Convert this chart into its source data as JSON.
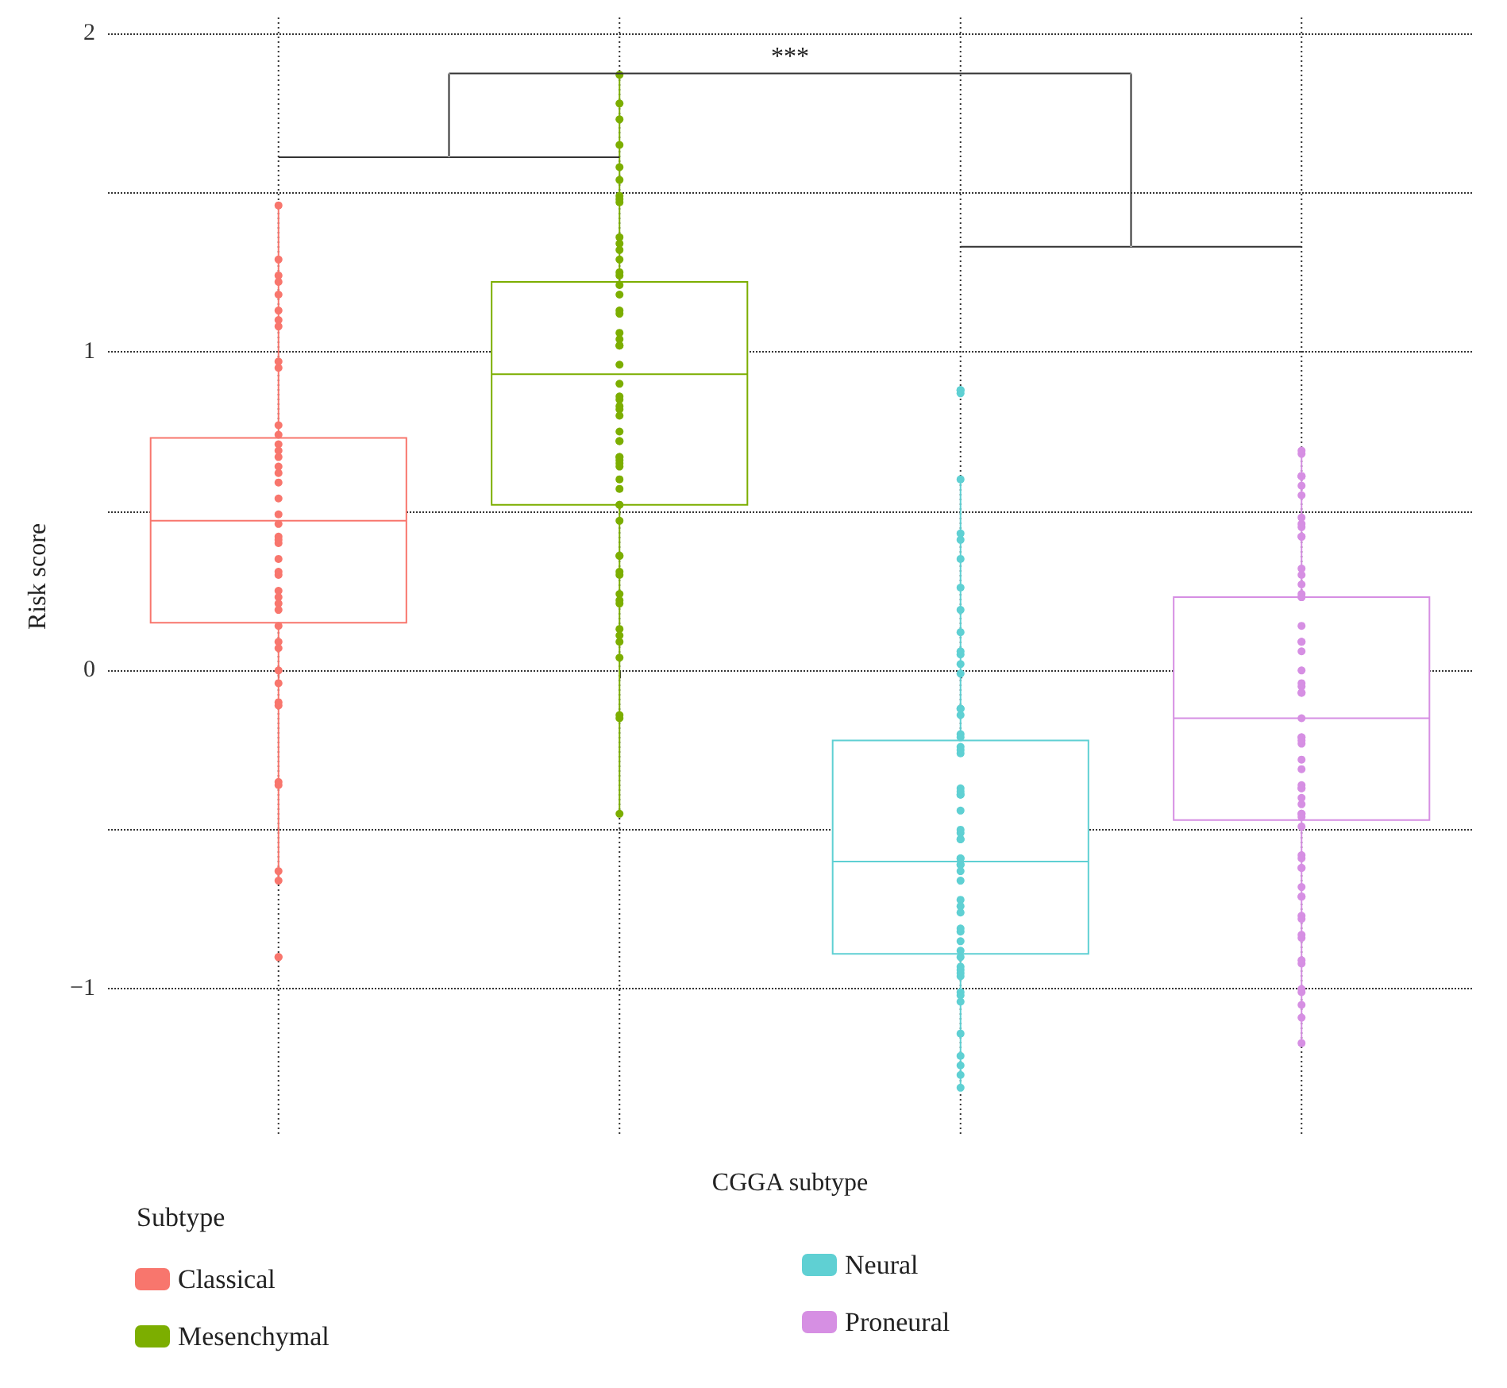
{
  "chart_data": {
    "type": "box",
    "categories": [
      null,
      null,
      null,
      null
    ],
    "xlabel": "CGGA subtype",
    "ylabel": "Risk score",
    "ylim": [
      -1.46,
      2.05
    ],
    "yticks": [
      {
        "value": -1,
        "label": "−1"
      },
      {
        "value": -0.5,
        "label": null
      },
      0,
      {
        "value": 0.5,
        "label": null
      },
      1,
      {
        "value": 1.5,
        "label": null
      },
      2
    ],
    "grid": true,
    "tick_labels": "y",
    "legend": "bottom left",
    "legend_title": "Subtype",
    "annotations": [
      "***"
    ],
    "marker": "circle",
    "series": [
      {
        "name": "Classical",
        "color": "#f8766d",
        "boxes": [
          {
            "low": -0.67,
            "q1": 0.15,
            "median": 0.47,
            "q3": 0.73,
            "high": 1.47,
            "outliers": [
              1.29,
              1.46,
              1.13,
              1.18,
              1.24,
              1.08,
              1.22,
              1.1,
              0.95,
              0.97,
              0.77,
              0.74,
              0.64,
              0.67,
              0.69,
              0.62,
              0.71,
              0.4,
              0.35,
              0.46,
              0.49,
              0.54,
              0.59,
              0.42,
              0.23,
              0.19,
              0.25,
              0.3,
              0.21,
              0.14,
              0.09,
              0.07,
              -0.1,
              -0.11,
              -0.04,
              0,
              -0.35,
              -0.36,
              -0.63,
              -0.66,
              -0.9,
              -0.9,
              0.41,
              0.31
            ]
          },
          null,
          null,
          null
        ]
      },
      {
        "name": "Mesenchymal",
        "color": "#7cae00",
        "boxes": [
          null,
          {
            "low": -0.45,
            "q1": 0.52,
            "median": 0.93,
            "q3": 1.22,
            "high": 1.87,
            "outliers": [
              1.87,
              1.78,
              1.73,
              1.65,
              1.58,
              1.49,
              1.54,
              1.47,
              1.48,
              1.36,
              1.32,
              1.34,
              1.29,
              1.24,
              1.25,
              1.21,
              1.12,
              1.13,
              1.18,
              1.02,
              1.06,
              1.02,
              1.04,
              0.96,
              0.9,
              0.85,
              0.83,
              0.82,
              0.8,
              0.86,
              0.75,
              0.72,
              0.66,
              0.72,
              0.67,
              0.65,
              0.64,
              0.6,
              0.67,
              0.57,
              0.52,
              0.47,
              0.52,
              0.36,
              0.36,
              0.3,
              0.31,
              0.24,
              0.22,
              0.21,
              0.11,
              0.13,
              0.09,
              0.04,
              -0.14,
              -0.15,
              -0.45
            ]
          },
          null,
          null
        ]
      },
      {
        "name": "Neural",
        "color": "#5fd0d3",
        "boxes": [
          null,
          null,
          {
            "low": -1.31,
            "q1": -0.89,
            "median": -0.6,
            "q3": -0.22,
            "high": 0.6,
            "outliers": [
              0.87,
              0.88,
              0.88,
              0.26,
              0.35,
              0.41,
              0.43,
              0.6,
              0.05,
              0.19,
              0.12,
              0.06,
              0.02,
              -0.01,
              -0.12,
              -0.12,
              -0.14,
              -0.25,
              -0.2,
              -0.21,
              -0.26,
              -0.39,
              -0.39,
              -0.44,
              -0.37,
              -0.24,
              -0.38,
              -0.5,
              -0.53,
              -0.53,
              -0.51,
              -0.61,
              -0.59,
              -0.59,
              -0.63,
              -0.61,
              -0.72,
              -0.76,
              -0.74,
              -0.66,
              -0.85,
              -0.9,
              -0.82,
              -0.93,
              -0.88,
              -1.01,
              -0.94,
              -0.96,
              -1.02,
              -1.04,
              -1.14,
              -1.24,
              -1.21,
              -1.27,
              -1.31,
              -0.95,
              -0.81
            ]
          },
          null
        ]
      },
      {
        "name": "Proneural",
        "color": "#d68fe3",
        "boxes": [
          null,
          null,
          null,
          {
            "low": -1.17,
            "q1": -0.47,
            "median": -0.15,
            "q3": 0.23,
            "high": 0.69,
            "outliers": [
              0.68,
              0.69,
              0.61,
              0.61,
              0.61,
              0.58,
              0.55,
              0.46,
              0.45,
              0.48,
              0.42,
              0.42,
              0.32,
              0.3,
              0.24,
              0.23,
              0.23,
              0.27,
              0.09,
              0.09,
              0.14,
              0.06,
              -0.05,
              -0.07,
              -0.07,
              -0.04,
              0,
              -0.15,
              -0.21,
              -0.21,
              -0.23,
              -0.22,
              -0.28,
              -0.37,
              -0.36,
              -0.37,
              -0.4,
              -0.31,
              -0.45,
              -0.42,
              -0.46,
              -0.49,
              -0.45,
              -0.58,
              -0.62,
              -0.62,
              -0.59,
              -0.68,
              -0.77,
              -0.71,
              -0.78,
              -0.84,
              -0.71,
              -0.92,
              -0.83,
              -0.91,
              -1,
              -1.01,
              -1.05,
              -1.09,
              -1.17
            ]
          }
        ]
      }
    ]
  }
}
